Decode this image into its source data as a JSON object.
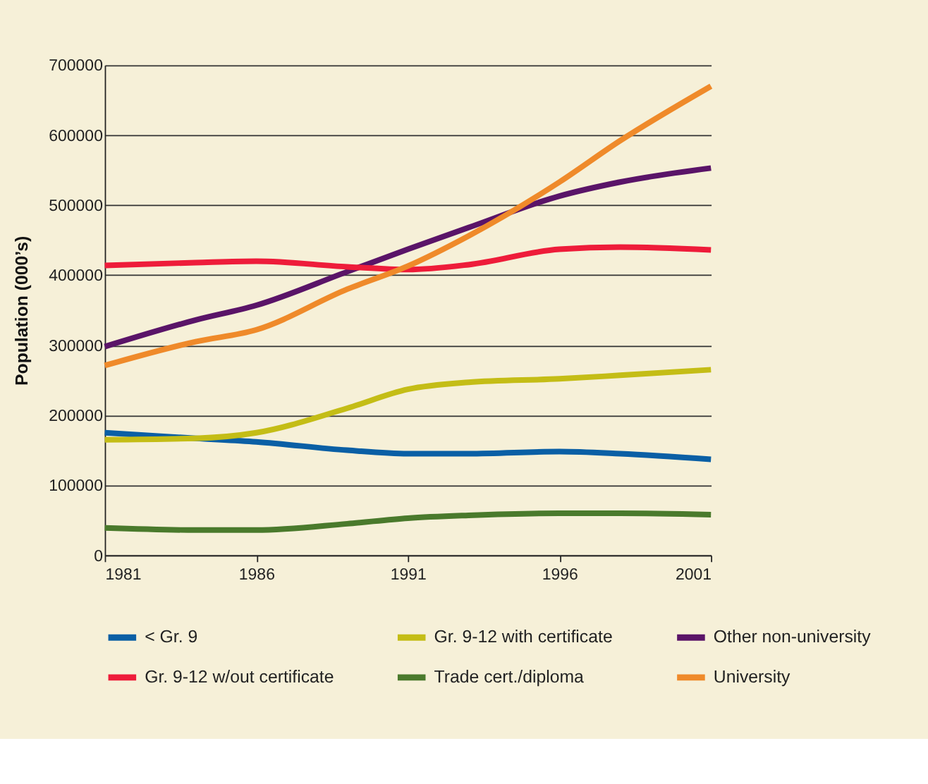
{
  "chart_data": {
    "type": "line",
    "ylabel": "Population (000’s)",
    "xlim": [
      1981,
      2001
    ],
    "xticks": [
      1981,
      1986,
      1991,
      1996,
      2001
    ],
    "ylim": [
      0,
      700000
    ],
    "yticks": [
      0,
      100000,
      200000,
      300000,
      400000,
      500000,
      600000,
      700000
    ],
    "grid": "y",
    "legend": "bottom",
    "marker": "none",
    "line_style": "solid",
    "x": [
      1981,
      1984,
      1986,
      1989,
      1991,
      1993,
      1996,
      1998,
      2001
    ],
    "series": [
      {
        "name": "< Gr. 9",
        "color": "#0a5fa5",
        "values": [
          175000,
          167000,
          162000,
          150000,
          145000,
          145000,
          148000,
          145000,
          137000
        ]
      },
      {
        "name": "Gr. 9-12 with certificate",
        "color": "#c4bd16",
        "values": [
          165000,
          167000,
          175000,
          210000,
          237000,
          247000,
          252000,
          257000,
          265000
        ]
      },
      {
        "name": "Other non-university",
        "color": "#5a1468",
        "values": [
          298000,
          336000,
          357000,
          405000,
          437000,
          468000,
          513000,
          533000,
          553000
        ]
      },
      {
        "name": "Gr. 9-12 w/out certificate",
        "color": "#ee1c3a",
        "values": [
          414000,
          418000,
          420000,
          412000,
          408000,
          415000,
          437000,
          440000,
          436000
        ]
      },
      {
        "name": "Trade cert./diploma",
        "color": "#4a7a2c",
        "values": [
          39000,
          36000,
          36000,
          45000,
          53000,
          57000,
          60000,
          60000,
          58000
        ]
      },
      {
        "name": "University",
        "color": "#ef8a2a",
        "values": [
          271000,
          305000,
          322000,
          380000,
          413000,
          456000,
          533000,
          592000,
          670000
        ]
      }
    ]
  }
}
